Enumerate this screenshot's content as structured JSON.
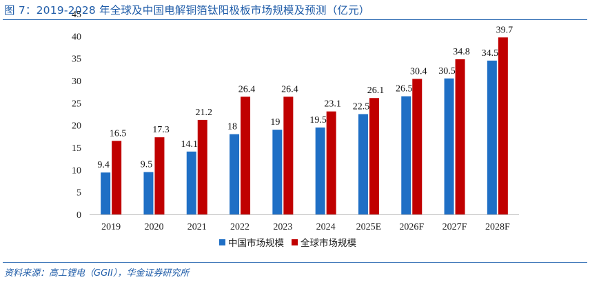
{
  "header": {
    "title": "图 7：2019-2028 年全球及中国电解铜箔钛阳极板市场规模及预测（亿元）"
  },
  "footer": {
    "source": "资料来源：高工锂电（GGII），华金证券研究所"
  },
  "colors": {
    "china": "#1f6fc5",
    "global": "#c00000",
    "accent": "#1f5ca8"
  },
  "chart_data": {
    "type": "bar",
    "title": "",
    "xlabel": "",
    "ylabel": "",
    "categories": [
      "2019",
      "2020",
      "2021",
      "2022",
      "2023",
      "2024",
      "2025E",
      "2026F",
      "2027F",
      "2028F"
    ],
    "series": [
      {
        "name": "中国市场规模",
        "values": [
          9.4,
          9.5,
          14.1,
          18,
          19,
          19.5,
          22.5,
          26.5,
          30.5,
          34.5
        ]
      },
      {
        "name": "全球市场规模",
        "values": [
          16.5,
          17.3,
          21.2,
          26.4,
          26.4,
          23.1,
          26.1,
          30.4,
          34.8,
          39.7
        ]
      }
    ],
    "ylim": [
      0,
      45
    ],
    "yticks": [
      0,
      5,
      10,
      15,
      20,
      25,
      30,
      35,
      40,
      45
    ],
    "grid": false,
    "legend": "bottom-center"
  }
}
